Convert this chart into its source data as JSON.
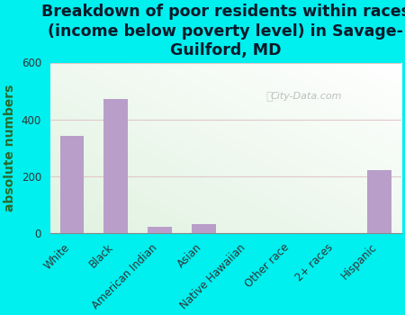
{
  "title": "Breakdown of poor residents within races\n(income below poverty level) in Savage-\nGuilford, MD",
  "ylabel": "absolute numbers",
  "categories": [
    "White",
    "Black",
    "American Indian",
    "Asian",
    "Native Hawaiian",
    "Other race",
    "2+ races",
    "Hispanic"
  ],
  "values": [
    340,
    470,
    20,
    30,
    0,
    0,
    0,
    220
  ],
  "bar_color": "#b89ec8",
  "background_color": "#00efef",
  "ylim": [
    0,
    600
  ],
  "yticks": [
    0,
    200,
    400,
    600
  ],
  "title_color": "#0a1a2a",
  "ylabel_color": "#2a6a2a",
  "watermark": "City-Data.com",
  "title_fontsize": 12.5,
  "ylabel_fontsize": 10,
  "tick_fontsize": 8.5,
  "grid_color": "#e0c8c8",
  "plot_bg_color": "#e8f2e0"
}
